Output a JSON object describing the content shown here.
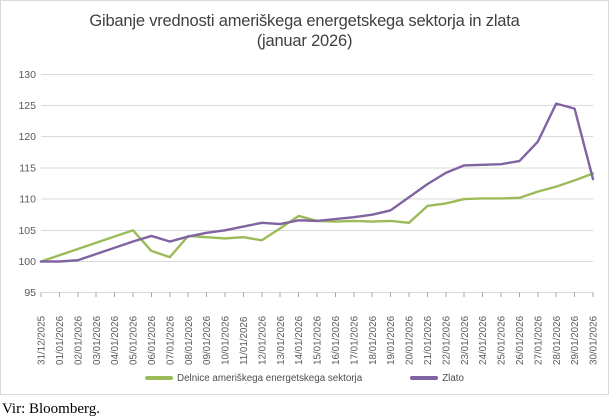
{
  "title": {
    "line1": "Gibanje vrednosti ameriškega energetskega sektorja in zlata",
    "line2": "(januar 2026)"
  },
  "source": "Vir: Bloomberg.",
  "colors": {
    "series_energy": "#9BBB59",
    "series_gold": "#8064A2",
    "gridline": "#D9D9D9",
    "tick": "#A6A6A6",
    "axis_label": "#595959",
    "title_text": "#404040",
    "border": "#D9D9D9"
  },
  "chart_data": {
    "type": "line",
    "title": "Gibanje vrednosti ameriškega energetskega sektorja in zlata (januar 2026)",
    "xlabel": "",
    "ylabel": "",
    "ylim": [
      95,
      130
    ],
    "yticks": [
      95,
      100,
      105,
      110,
      115,
      120,
      125,
      130
    ],
    "grid": true,
    "legend_position": "bottom",
    "x": [
      "31/12/2025",
      "01/01/2026",
      "02/01/2026",
      "03/01/2026",
      "04/01/2026",
      "05/01/2026",
      "06/01/2026",
      "07/01/2026",
      "08/01/2026",
      "09/01/2026",
      "10/01/2026",
      "11/01/2026",
      "12/01/2026",
      "13/01/2026",
      "14/01/2026",
      "15/01/2026",
      "16/01/2026",
      "17/01/2026",
      "18/01/2026",
      "19/01/2026",
      "20/01/2026",
      "21/01/2026",
      "22/01/2026",
      "23/01/2026",
      "24/01/2026",
      "25/01/2026",
      "26/01/2026",
      "27/01/2026",
      "28/01/2026",
      "29/01/2026",
      "30/01/2026"
    ],
    "series": [
      {
        "name": "Delnice ameriškega energetskega sektorja",
        "color": "#9BBB59",
        "values": [
          100,
          101,
          102,
          103,
          104,
          105,
          101.7,
          100.7,
          104.1,
          103.9,
          103.7,
          103.9,
          103.4,
          105.3,
          107.3,
          106.5,
          106.4,
          106.5,
          106.4,
          106.5,
          106.2,
          108.9,
          109.3,
          110.0,
          110.1,
          110.1,
          110.2,
          111.2,
          112.0,
          113.0,
          114.1
        ]
      },
      {
        "name": "Zlato",
        "color": "#8064A2",
        "values": [
          100,
          100,
          100.2,
          101.2,
          102.2,
          103.2,
          104.1,
          103.2,
          104.0,
          104.6,
          105.0,
          105.6,
          106.2,
          106.0,
          106.6,
          106.5,
          106.8,
          107.1,
          107.5,
          108.2,
          110.3,
          112.4,
          114.2,
          115.4,
          115.5,
          115.6,
          116.1,
          119.2,
          125.3,
          124.5,
          113.2
        ]
      }
    ]
  }
}
